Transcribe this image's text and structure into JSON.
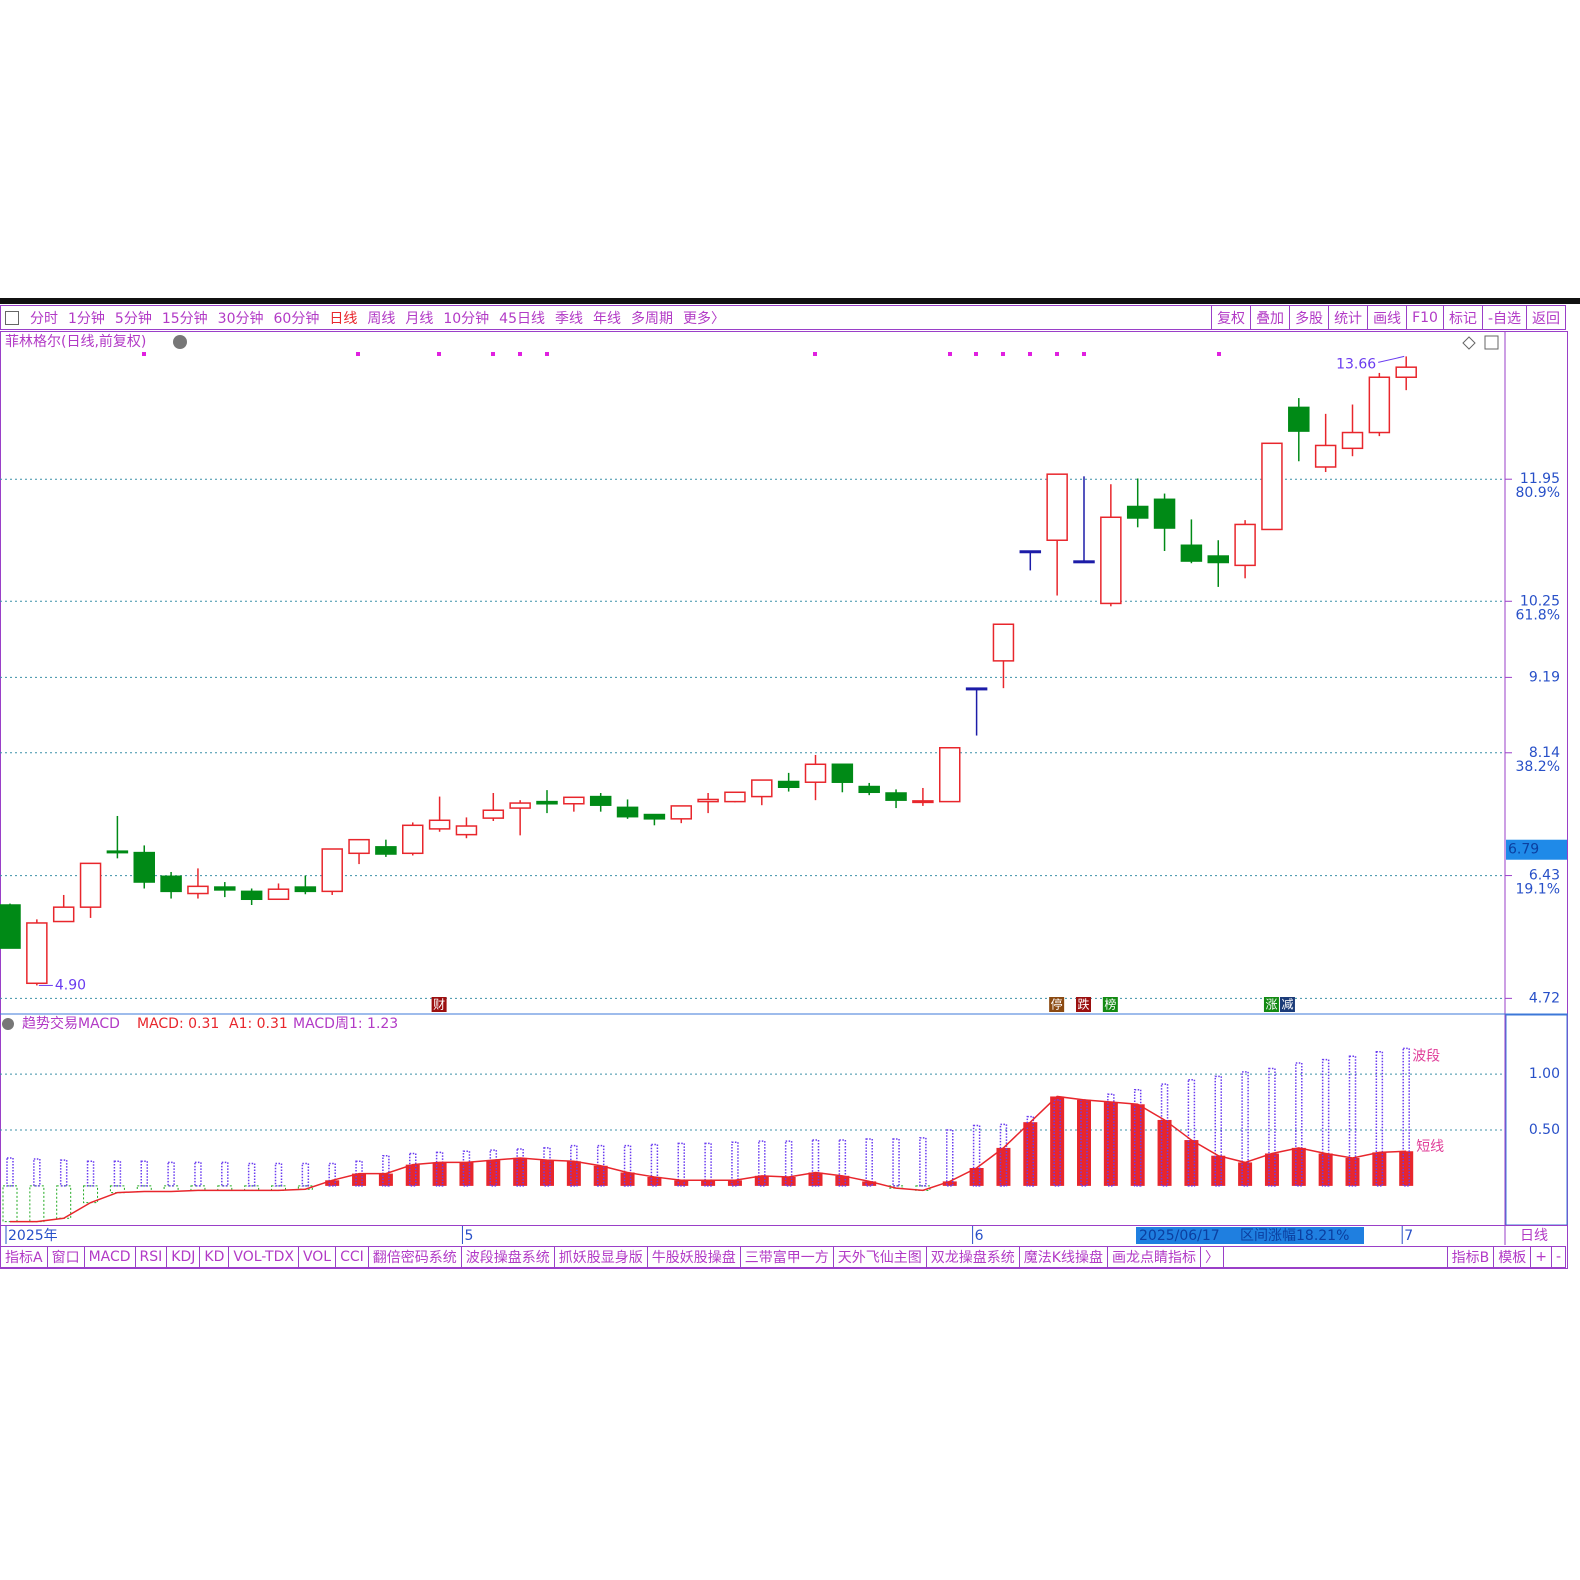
{
  "toolbar": {
    "periods": [
      "分时",
      "1分钟",
      "5分钟",
      "15分钟",
      "30分钟",
      "60分钟",
      "日线",
      "周线",
      "月线",
      "10分钟",
      "45日线",
      "季线",
      "年线",
      "多周期",
      "更多〉"
    ],
    "tools": [
      "复权",
      "叠加",
      "多股",
      "统计",
      "画线",
      "F10",
      "标记",
      "-自选",
      "返回"
    ]
  },
  "tabs": {
    "left": [
      "指标A",
      "窗口",
      "MACD",
      "RSI",
      "KDJ",
      "KD",
      "VOL-TDX",
      "VOL",
      "CCI",
      "翻倍密码系统",
      "波段操盘系统",
      "抓妖股显身版",
      "牛股妖股操盘",
      "三带富甲一方",
      "天外飞仙主图",
      "双龙操盘系统",
      "魔法K线操盘",
      "画龙点睛指标",
      "〉"
    ],
    "right": [
      "指标B",
      "模板",
      "+",
      "-"
    ]
  },
  "range_label": [
    "2025/06/17",
    "区间涨幅18.21%"
  ],
  "period_label": "日线",
  "chart_data": [
    {
      "type": "candlestick",
      "title": "菲林格尔(日线,前复权)",
      "categories": [
        "2025年",
        null,
        null,
        null,
        null,
        null,
        null,
        null,
        null,
        null,
        null,
        null,
        null,
        null,
        null,
        null,
        null,
        "5",
        null,
        null,
        null,
        null,
        null,
        null,
        null,
        null,
        null,
        null,
        null,
        null,
        null,
        null,
        null,
        null,
        null,
        null,
        "6",
        null,
        null,
        null,
        null,
        null,
        null,
        null,
        null,
        null,
        null,
        null,
        null,
        null,
        null,
        null,
        "7"
      ],
      "open": [
        6.02,
        4.93,
        5.79,
        5.99,
        6.77,
        6.75,
        6.42,
        6.18,
        6.27,
        6.21,
        6.1,
        6.27,
        6.21,
        6.74,
        6.83,
        6.74,
        7.08,
        7.0,
        7.23,
        7.37,
        7.46,
        7.43,
        7.53,
        7.38,
        7.28,
        7.22,
        7.46,
        7.46,
        7.53,
        7.74,
        7.73,
        7.98,
        7.67,
        7.58,
        7.46,
        7.46,
        9.04,
        9.42,
        10.95,
        11.1,
        10.81,
        10.22,
        11.57,
        11.67,
        11.03,
        10.88,
        10.75,
        11.25,
        12.95,
        12.12,
        12.38,
        12.6,
        13.37
      ],
      "high": [
        6.04,
        5.82,
        6.16,
        6.6,
        7.26,
        6.85,
        6.48,
        6.53,
        6.34,
        6.25,
        6.32,
        6.43,
        6.8,
        6.93,
        6.93,
        7.17,
        7.53,
        7.24,
        7.58,
        7.48,
        7.62,
        7.52,
        7.58,
        7.49,
        7.28,
        7.4,
        7.58,
        7.59,
        7.76,
        7.86,
        8.11,
        7.98,
        7.72,
        7.63,
        7.65,
        8.21,
        9.04,
        9.93,
        10.95,
        12.02,
        11.99,
        11.88,
        11.96,
        11.75,
        11.39,
        11.1,
        11.38,
        12.45,
        13.08,
        12.86,
        12.99,
        13.43,
        13.66
      ],
      "low": [
        5.42,
        4.9,
        5.79,
        5.84,
        6.67,
        6.25,
        6.11,
        6.11,
        6.13,
        6.02,
        6.09,
        6.17,
        6.16,
        6.59,
        6.69,
        6.71,
        7.04,
        6.95,
        7.19,
        6.99,
        7.3,
        7.32,
        7.32,
        7.22,
        7.13,
        7.16,
        7.3,
        7.45,
        7.41,
        7.6,
        7.48,
        7.59,
        7.55,
        7.37,
        7.4,
        7.46,
        8.38,
        9.04,
        10.68,
        10.33,
        10.81,
        10.18,
        11.28,
        10.95,
        10.78,
        10.45,
        10.57,
        11.25,
        12.2,
        12.05,
        12.27,
        12.55,
        13.19
      ],
      "close": [
        5.42,
        5.77,
        5.99,
        6.6,
        6.75,
        6.34,
        6.21,
        6.28,
        6.23,
        6.1,
        6.24,
        6.21,
        6.8,
        6.93,
        6.73,
        7.13,
        7.2,
        7.12,
        7.34,
        7.44,
        7.43,
        7.52,
        7.41,
        7.25,
        7.22,
        7.4,
        7.49,
        7.59,
        7.76,
        7.66,
        7.98,
        7.73,
        7.59,
        7.48,
        7.47,
        8.21,
        9.04,
        9.93,
        10.95,
        12.02,
        10.81,
        11.42,
        11.41,
        11.27,
        10.81,
        10.79,
        11.32,
        12.45,
        12.62,
        12.42,
        12.6,
        13.37,
        13.51
      ],
      "up_color": "#e8262c",
      "down_color": "#008a16",
      "flat_color": "#1c1ca8",
      "ylim": [
        4.53,
        14.0
      ],
      "yticks": [
        11.95,
        10.25,
        9.19,
        8.14,
        6.43,
        4.72
      ],
      "fib_ticks": [
        {
          "value": 11.95,
          "label": "80.9%"
        },
        {
          "value": 10.25,
          "label": "61.8%"
        },
        {
          "value": 8.14,
          "label": "38.2%"
        },
        {
          "value": 6.43,
          "label": "19.1%"
        }
      ],
      "grid": true,
      "high_label": 13.66,
      "low_label": {
        "value": 4.9,
        "label": "4.90"
      },
      "cursor_price": 6.79,
      "badges": [
        null,
        null,
        null,
        null,
        null,
        null,
        null,
        null,
        null,
        null,
        null,
        null,
        null,
        null,
        null,
        null,
        "财",
        null,
        null,
        null,
        null,
        null,
        null,
        null,
        null,
        null,
        null,
        null,
        null,
        null,
        null,
        null,
        null,
        null,
        null,
        null,
        null,
        null,
        null,
        "停",
        "跌",
        "榜",
        null,
        null,
        null,
        null,
        null,
        [
          "涨",
          "减"
        ],
        null,
        null,
        null,
        null,
        null
      ]
    },
    {
      "type": "macd",
      "title": "趋势交易MACD",
      "legend_items": [
        "MACD: 0.31",
        "A1: 0.31",
        "MACD周1: 1.23"
      ],
      "series": [
        {
          "name": "短线",
          "color": "#e8262c",
          "negative_color": "#22aa22",
          "values": [
            -0.32,
            -0.32,
            -0.29,
            -0.15,
            -0.06,
            -0.05,
            -0.05,
            -0.04,
            -0.04,
            -0.04,
            -0.04,
            -0.03,
            0.05,
            0.11,
            0.11,
            0.19,
            0.21,
            0.21,
            0.23,
            0.25,
            0.23,
            0.22,
            0.18,
            0.12,
            0.08,
            0.05,
            0.05,
            0.05,
            0.09,
            0.08,
            0.12,
            0.09,
            0.04,
            -0.02,
            -0.04,
            0.04,
            0.16,
            0.34,
            0.57,
            0.8,
            0.77,
            0.75,
            0.73,
            0.59,
            0.41,
            0.27,
            0.21,
            0.29,
            0.34,
            0.29,
            0.25,
            0.3,
            0.31
          ]
        },
        {
          "name": "波段",
          "color": "#6a3cf0",
          "values": [
            0.25,
            0.24,
            0.23,
            0.22,
            0.22,
            0.22,
            0.21,
            0.21,
            0.21,
            0.2,
            0.2,
            0.2,
            0.2,
            0.22,
            0.27,
            0.29,
            0.3,
            0.31,
            0.32,
            0.33,
            0.34,
            0.36,
            0.36,
            0.36,
            0.37,
            0.38,
            0.38,
            0.39,
            0.4,
            0.4,
            0.41,
            0.41,
            0.42,
            0.42,
            0.43,
            0.5,
            0.54,
            0.55,
            0.62,
            0.77,
            0.77,
            0.82,
            0.86,
            0.91,
            0.95,
            0.98,
            1.02,
            1.05,
            1.1,
            1.13,
            1.16,
            1.2,
            1.23
          ]
        }
      ],
      "ylim": [
        -0.35,
        1.52
      ],
      "yticks": [
        {
          "value": 1,
          "label": "1.00"
        },
        {
          "value": 0.5,
          "label": "0.50"
        }
      ],
      "grid": true
    }
  ]
}
